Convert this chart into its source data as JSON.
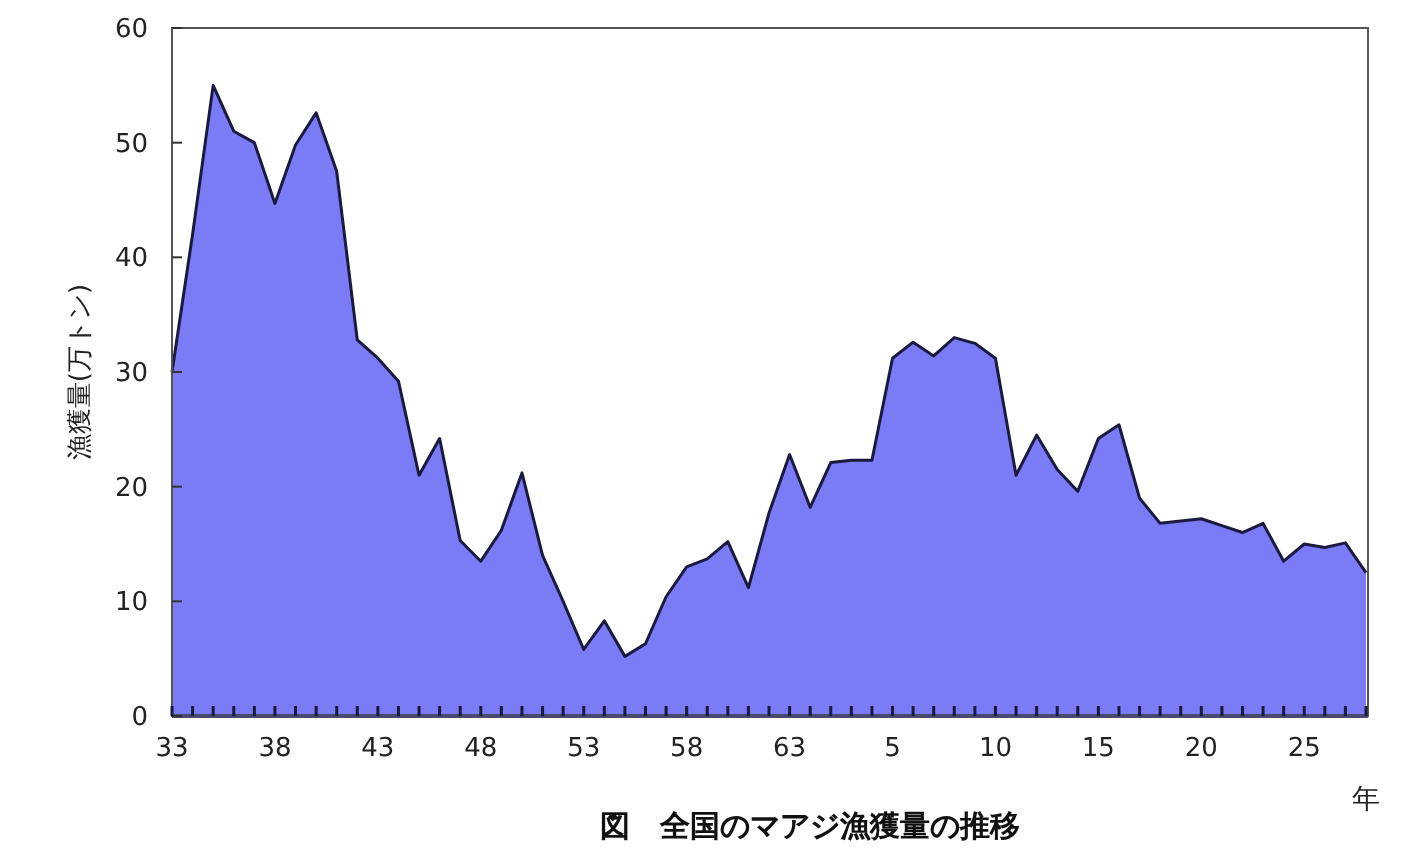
{
  "chart_data": {
    "type": "area",
    "title": "図　全国のマアジ漁獲量の推移",
    "xlabel": "年",
    "ylabel": "漁獲量(万トン)",
    "categories": [
      "33",
      null,
      null,
      null,
      null,
      "38",
      null,
      null,
      null,
      null,
      "43",
      null,
      null,
      null,
      null,
      "48",
      null,
      null,
      null,
      null,
      "53",
      null,
      null,
      null,
      null,
      "58",
      null,
      null,
      null,
      null,
      "63",
      null,
      null,
      null,
      null,
      "5",
      null,
      null,
      null,
      null,
      "10",
      null,
      null,
      null,
      null,
      "15",
      null,
      null,
      null,
      null,
      "20",
      null,
      null,
      null,
      null,
      "25",
      null,
      null,
      null
    ],
    "series": [
      {
        "color": "#7b7bf5",
        "values": [
          30,
          42,
          55,
          51,
          50,
          44.7,
          49.8,
          52.6,
          47.5,
          32.8,
          31.2,
          29.2,
          21,
          24.2,
          15.3,
          13.5,
          16.2,
          21.2,
          14,
          10,
          5.8,
          8.3,
          5.2,
          6.3,
          10.4,
          13,
          13.7,
          15.2,
          11.2,
          17.7,
          22.8,
          18.2,
          22.1,
          22.3,
          22.3,
          31.2,
          32.6,
          31.4,
          33,
          32.5,
          31.2,
          21,
          24.5,
          21.5,
          19.6,
          24.2,
          25.4,
          19,
          16.8,
          17,
          17.2,
          16.6,
          16,
          16.8,
          13.5,
          15,
          14.7,
          15.1,
          12.5
        ]
      }
    ],
    "ylim": [
      0,
      60
    ],
    "yticks": [
      0,
      10,
      20,
      30,
      40,
      50,
      60
    ],
    "grid": false
  }
}
